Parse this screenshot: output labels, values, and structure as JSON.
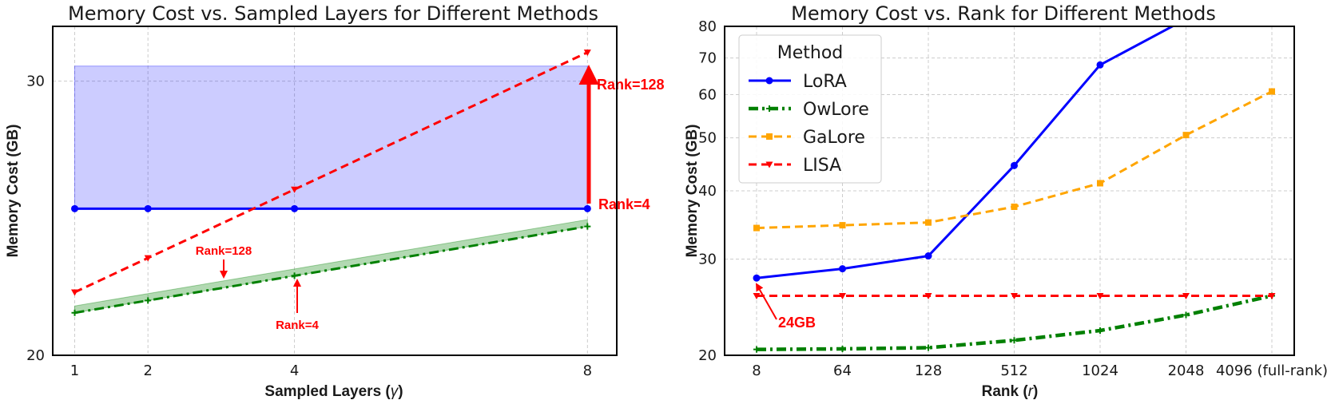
{
  "chart_data": [
    {
      "type": "line",
      "title": "Memory Cost vs. Sampled Layers for Different Methods",
      "xlabel": "Sampled Layers (",
      "xlabel_symbol": "γ",
      "xlabel_close": ")",
      "ylabel": "Memory Cost (GB)",
      "x": [
        1,
        2,
        4,
        8
      ],
      "xticks": [
        "1",
        "2",
        "4",
        "8"
      ],
      "xlim": [
        0.7,
        8.4
      ],
      "yticks": [
        "20",
        "30"
      ],
      "ytick_values": [
        20,
        30
      ],
      "ylim": [
        20,
        32
      ],
      "grid": true,
      "series": [
        {
          "key": "lora",
          "color": "#0000ff",
          "marker": "circle",
          "dash": "solid",
          "values": [
            25.35,
            25.35,
            25.35,
            25.35
          ]
        },
        {
          "key": "lisa",
          "color": "#ff0000",
          "marker": "triangle",
          "dash": "dashed",
          "values": [
            22.3,
            23.55,
            26.05,
            31.05
          ]
        },
        {
          "key": "owlore",
          "color": "#008000",
          "marker": "plus",
          "dash": "dashdot",
          "values": [
            21.55,
            22.0,
            22.9,
            24.7
          ]
        }
      ],
      "bands": [
        {
          "color": "#0000ff",
          "opacity": 0.2,
          "x": [
            1,
            8
          ],
          "lower": [
            25.35,
            25.35
          ],
          "upper": [
            30.55,
            30.55
          ]
        },
        {
          "color": "#008000",
          "opacity": 0.3,
          "x": [
            1,
            8
          ],
          "lower": [
            21.55,
            24.7
          ],
          "upper": [
            21.8,
            24.95
          ]
        }
      ],
      "annotations": {
        "rank128_right": "Rank=128",
        "rank4_right": "Rank=4",
        "rank128_small": "Rank=128",
        "rank4_small": "Rank=4"
      }
    },
    {
      "type": "line",
      "title": "Memory Cost vs. Rank for Different Methods",
      "xlabel": "Rank (",
      "xlabel_symbol": "r",
      "xlabel_close": ")",
      "ylabel": "Memory Cost (GB)",
      "categories": [
        "8",
        "64",
        "128",
        "512",
        "1024",
        "2048",
        "4096 (full-rank)"
      ],
      "ylim": [
        20,
        80
      ],
      "yscale": "log",
      "yticks": [
        "20",
        "30",
        "40",
        "50",
        "60",
        "70",
        "80"
      ],
      "ytick_values": [
        20,
        30,
        40,
        50,
        60,
        70,
        80
      ],
      "grid": true,
      "legend": {
        "title": "Method",
        "placement": "upper-left",
        "entries": [
          "LoRA",
          "OwLore",
          "GaLore",
          "LISA"
        ]
      },
      "series": [
        {
          "name": "LoRA",
          "color": "#0000ff",
          "marker": "circle",
          "dash": "solid",
          "values": [
            27.7,
            28.8,
            30.4,
            44.5,
            68.0,
            82.5,
            null
          ]
        },
        {
          "name": "OwLore",
          "color": "#008000",
          "marker": "plus",
          "dash": "dashdot",
          "values": [
            20.5,
            20.55,
            20.65,
            21.3,
            22.2,
            23.7,
            25.7
          ]
        },
        {
          "name": "GaLore",
          "color": "#ffa500",
          "marker": "square",
          "dash": "dashed",
          "values": [
            34.2,
            34.6,
            35.0,
            37.4,
            41.3,
            50.6,
            60.8
          ]
        },
        {
          "name": "LISA",
          "color": "#ff0000",
          "marker": "triangle",
          "dash": "dashed",
          "values": [
            25.7,
            25.7,
            25.7,
            25.7,
            25.7,
            25.7,
            25.7
          ]
        }
      ],
      "annotations": {
        "gb24": "24GB"
      }
    }
  ]
}
